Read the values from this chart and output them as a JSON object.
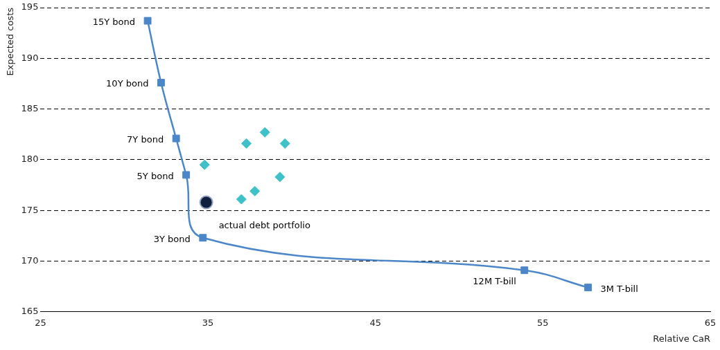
{
  "chart_data": {
    "type": "scatter",
    "xlabel": "Relative CaR",
    "ylabel": "Expected costs",
    "xlim": [
      25,
      65
    ],
    "xticks": [
      25,
      35,
      45,
      55,
      65
    ],
    "ylim": [
      165,
      195
    ],
    "yticks": [
      165,
      170,
      175,
      180,
      185,
      190,
      195
    ],
    "grid": "y",
    "series": [
      {
        "type": "line",
        "color": "#4a86c8",
        "marker": "square",
        "x": [
          31.4,
          32.2,
          33.1,
          33.7,
          34.7,
          53.9,
          57.7
        ],
        "values": [
          193.7,
          187.6,
          182.1,
          178.5,
          172.3,
          169.1,
          167.4
        ]
      },
      {
        "color": "#3fc1c9",
        "marker": "diamond",
        "x": [
          34.8,
          37.3,
          38.4,
          39.6,
          37.0,
          37.8,
          39.3
        ],
        "values": [
          179.5,
          181.6,
          182.7,
          181.6,
          176.1,
          176.9,
          178.3
        ]
      },
      {
        "color": "#0f1f3d",
        "marker": "circle",
        "x": [
          34.9
        ],
        "values": [
          175.8
        ]
      }
    ],
    "annotations": [
      {
        "text": "15Y bond",
        "x": 31.4,
        "y": 193.7
      },
      {
        "text": "10Y bond",
        "x": 32.2,
        "y": 187.6
      },
      {
        "text": "7Y bond",
        "x": 33.1,
        "y": 182.1
      },
      {
        "text": "5Y bond",
        "x": 33.7,
        "y": 178.5
      },
      {
        "text": "3Y bond",
        "x": 34.7,
        "y": 172.3
      },
      {
        "text": "12M T-bill",
        "x": 53.9,
        "y": 169.1
      },
      {
        "text": "3M T-bill",
        "x": 57.7,
        "y": 167.4
      },
      {
        "text": "actual debt portfolio",
        "x": 34.9,
        "y": 175.8
      }
    ]
  }
}
